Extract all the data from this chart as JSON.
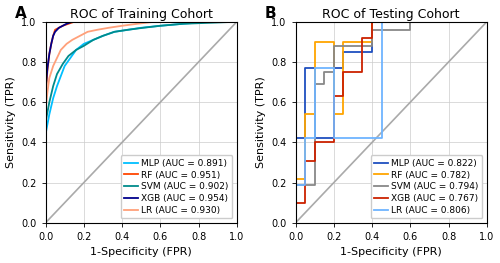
{
  "title_A": "ROC of Training Cohort",
  "title_B": "ROC of Testing Cohort",
  "label_A": "A",
  "label_B": "B",
  "xlabel": "1-Specificity (FPR)",
  "ylabel": "Sensitivity (TPR)",
  "models_A": {
    "MLP": {
      "color": "#00BFFF",
      "auc": 0.891
    },
    "RF": {
      "color": "#FF4500",
      "auc": 0.951
    },
    "SVM": {
      "color": "#008B8B",
      "auc": 0.902
    },
    "XGB": {
      "color": "#00008B",
      "auc": 0.954
    },
    "LR": {
      "color": "#FFA07A",
      "auc": 0.93
    }
  },
  "models_B": {
    "MLP": {
      "color": "#1F4FBF",
      "auc": 0.822
    },
    "RF": {
      "color": "#FFA500",
      "auc": 0.782
    },
    "SVM": {
      "color": "#888888",
      "auc": 0.794
    },
    "XGB": {
      "color": "#CC2200",
      "auc": 0.767
    },
    "LR": {
      "color": "#6EB4FF",
      "auc": 0.806
    }
  },
  "roc_A": {
    "MLP": {
      "fpr": [
        0.0,
        0.0,
        0.02,
        0.04,
        0.06,
        0.08,
        0.1,
        0.13,
        0.16,
        0.2,
        0.25,
        0.3,
        0.36,
        0.43,
        0.5,
        0.6,
        0.72,
        0.85,
        1.0
      ],
      "tpr": [
        0.0,
        0.44,
        0.54,
        0.62,
        0.68,
        0.73,
        0.78,
        0.82,
        0.86,
        0.89,
        0.91,
        0.93,
        0.95,
        0.96,
        0.97,
        0.98,
        0.99,
        1.0,
        1.0
      ]
    },
    "RF": {
      "fpr": [
        0.0,
        0.0,
        0.01,
        0.02,
        0.03,
        0.04,
        0.05,
        0.07,
        0.09,
        0.12,
        0.15,
        0.19,
        0.24,
        0.3,
        0.38,
        0.48,
        1.0
      ],
      "tpr": [
        0.0,
        0.63,
        0.76,
        0.84,
        0.89,
        0.93,
        0.96,
        0.97,
        0.98,
        0.99,
        1.0,
        1.0,
        1.0,
        1.0,
        1.0,
        1.0,
        1.0
      ]
    },
    "SVM": {
      "fpr": [
        0.0,
        0.0,
        0.02,
        0.04,
        0.06,
        0.09,
        0.12,
        0.16,
        0.2,
        0.25,
        0.3,
        0.36,
        0.43,
        0.51,
        0.6,
        0.72,
        1.0
      ],
      "tpr": [
        0.0,
        0.5,
        0.6,
        0.68,
        0.74,
        0.79,
        0.83,
        0.86,
        0.88,
        0.91,
        0.93,
        0.95,
        0.96,
        0.97,
        0.98,
        0.99,
        1.0
      ]
    },
    "XGB": {
      "fpr": [
        0.0,
        0.0,
        0.01,
        0.02,
        0.03,
        0.04,
        0.05,
        0.07,
        0.09,
        0.11,
        0.14,
        0.18,
        0.22,
        0.28,
        0.35,
        0.44,
        1.0
      ],
      "tpr": [
        0.0,
        0.66,
        0.77,
        0.84,
        0.89,
        0.93,
        0.95,
        0.97,
        0.98,
        0.99,
        1.0,
        1.0,
        1.0,
        1.0,
        1.0,
        1.0,
        1.0
      ]
    },
    "LR": {
      "fpr": [
        0.0,
        0.0,
        0.01,
        0.02,
        0.04,
        0.06,
        0.08,
        0.11,
        0.14,
        0.18,
        0.22,
        0.27,
        0.33,
        0.4,
        0.48,
        0.57,
        0.68,
        1.0
      ],
      "tpr": [
        0.0,
        0.56,
        0.65,
        0.72,
        0.78,
        0.82,
        0.86,
        0.89,
        0.91,
        0.93,
        0.95,
        0.96,
        0.97,
        0.98,
        0.99,
        1.0,
        1.0,
        1.0
      ]
    }
  },
  "roc_B": {
    "MLP": {
      "fpr": [
        0.0,
        0.0,
        0.0,
        0.05,
        0.05,
        0.1,
        0.1,
        0.2,
        0.2,
        0.25,
        0.25,
        0.4,
        0.4,
        0.5,
        0.5,
        0.6,
        1.0
      ],
      "tpr": [
        0.0,
        0.0,
        0.42,
        0.42,
        0.77,
        0.77,
        0.42,
        0.42,
        0.77,
        0.77,
        0.85,
        0.85,
        1.0,
        1.0,
        1.0,
        1.0,
        1.0
      ]
    },
    "RF": {
      "fpr": [
        0.0,
        0.0,
        0.05,
        0.05,
        0.1,
        0.1,
        0.2,
        0.2,
        0.25,
        0.25,
        0.4,
        0.4,
        0.5,
        1.0
      ],
      "tpr": [
        0.0,
        0.22,
        0.22,
        0.54,
        0.54,
        0.9,
        0.9,
        0.54,
        0.54,
        0.9,
        0.9,
        1.0,
        1.0,
        1.0
      ]
    },
    "SVM": {
      "fpr": [
        0.0,
        0.0,
        0.1,
        0.1,
        0.15,
        0.15,
        0.2,
        0.2,
        0.4,
        0.4,
        0.6,
        0.6,
        1.0
      ],
      "tpr": [
        0.0,
        0.19,
        0.19,
        0.69,
        0.69,
        0.75,
        0.75,
        0.88,
        0.88,
        0.96,
        0.96,
        1.0,
        1.0
      ]
    },
    "XGB": {
      "fpr": [
        0.0,
        0.0,
        0.05,
        0.05,
        0.1,
        0.1,
        0.2,
        0.2,
        0.25,
        0.25,
        0.35,
        0.35,
        0.4,
        0.4,
        0.5,
        1.0
      ],
      "tpr": [
        0.0,
        0.1,
        0.1,
        0.31,
        0.31,
        0.4,
        0.4,
        0.63,
        0.63,
        0.75,
        0.75,
        0.92,
        0.92,
        1.0,
        1.0,
        1.0
      ]
    },
    "LR": {
      "fpr": [
        0.0,
        0.0,
        0.05,
        0.05,
        0.1,
        0.1,
        0.2,
        0.2,
        0.45,
        0.45,
        1.0
      ],
      "tpr": [
        0.0,
        0.19,
        0.19,
        0.42,
        0.42,
        0.77,
        0.77,
        0.42,
        0.42,
        1.0,
        1.0
      ]
    }
  },
  "order_A": [
    "MLP",
    "RF",
    "SVM",
    "XGB",
    "LR"
  ],
  "order_B": [
    "MLP",
    "RF",
    "SVM",
    "XGB",
    "LR"
  ],
  "figsize": [
    5.0,
    2.63
  ],
  "dpi": 100,
  "background_color": "#FFFFFF",
  "grid_color": "#CCCCCC",
  "diagonal_color": "#AAAAAA",
  "tick_fontsize": 7,
  "label_fontsize": 8,
  "title_fontsize": 9,
  "legend_fontsize": 6.5,
  "linewidth": 1.3
}
